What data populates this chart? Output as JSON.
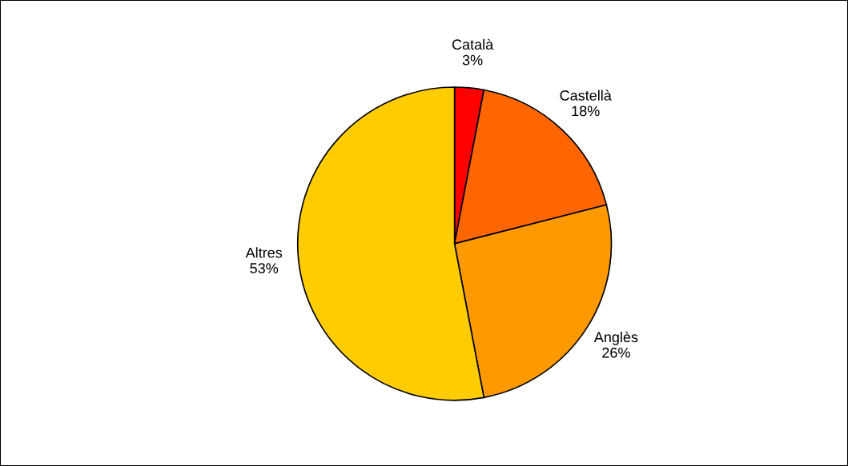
{
  "chart_data": {
    "type": "pie",
    "categories": [
      "Català",
      "Castellà",
      "Anglès",
      "Altres"
    ],
    "values": [
      3,
      18,
      26,
      53
    ],
    "colors": [
      "#ff0000",
      "#ff6600",
      "#ff9900",
      "#ffcc00"
    ],
    "value_labels": [
      "3%",
      "18%",
      "26%",
      "53%"
    ],
    "legend": false
  }
}
